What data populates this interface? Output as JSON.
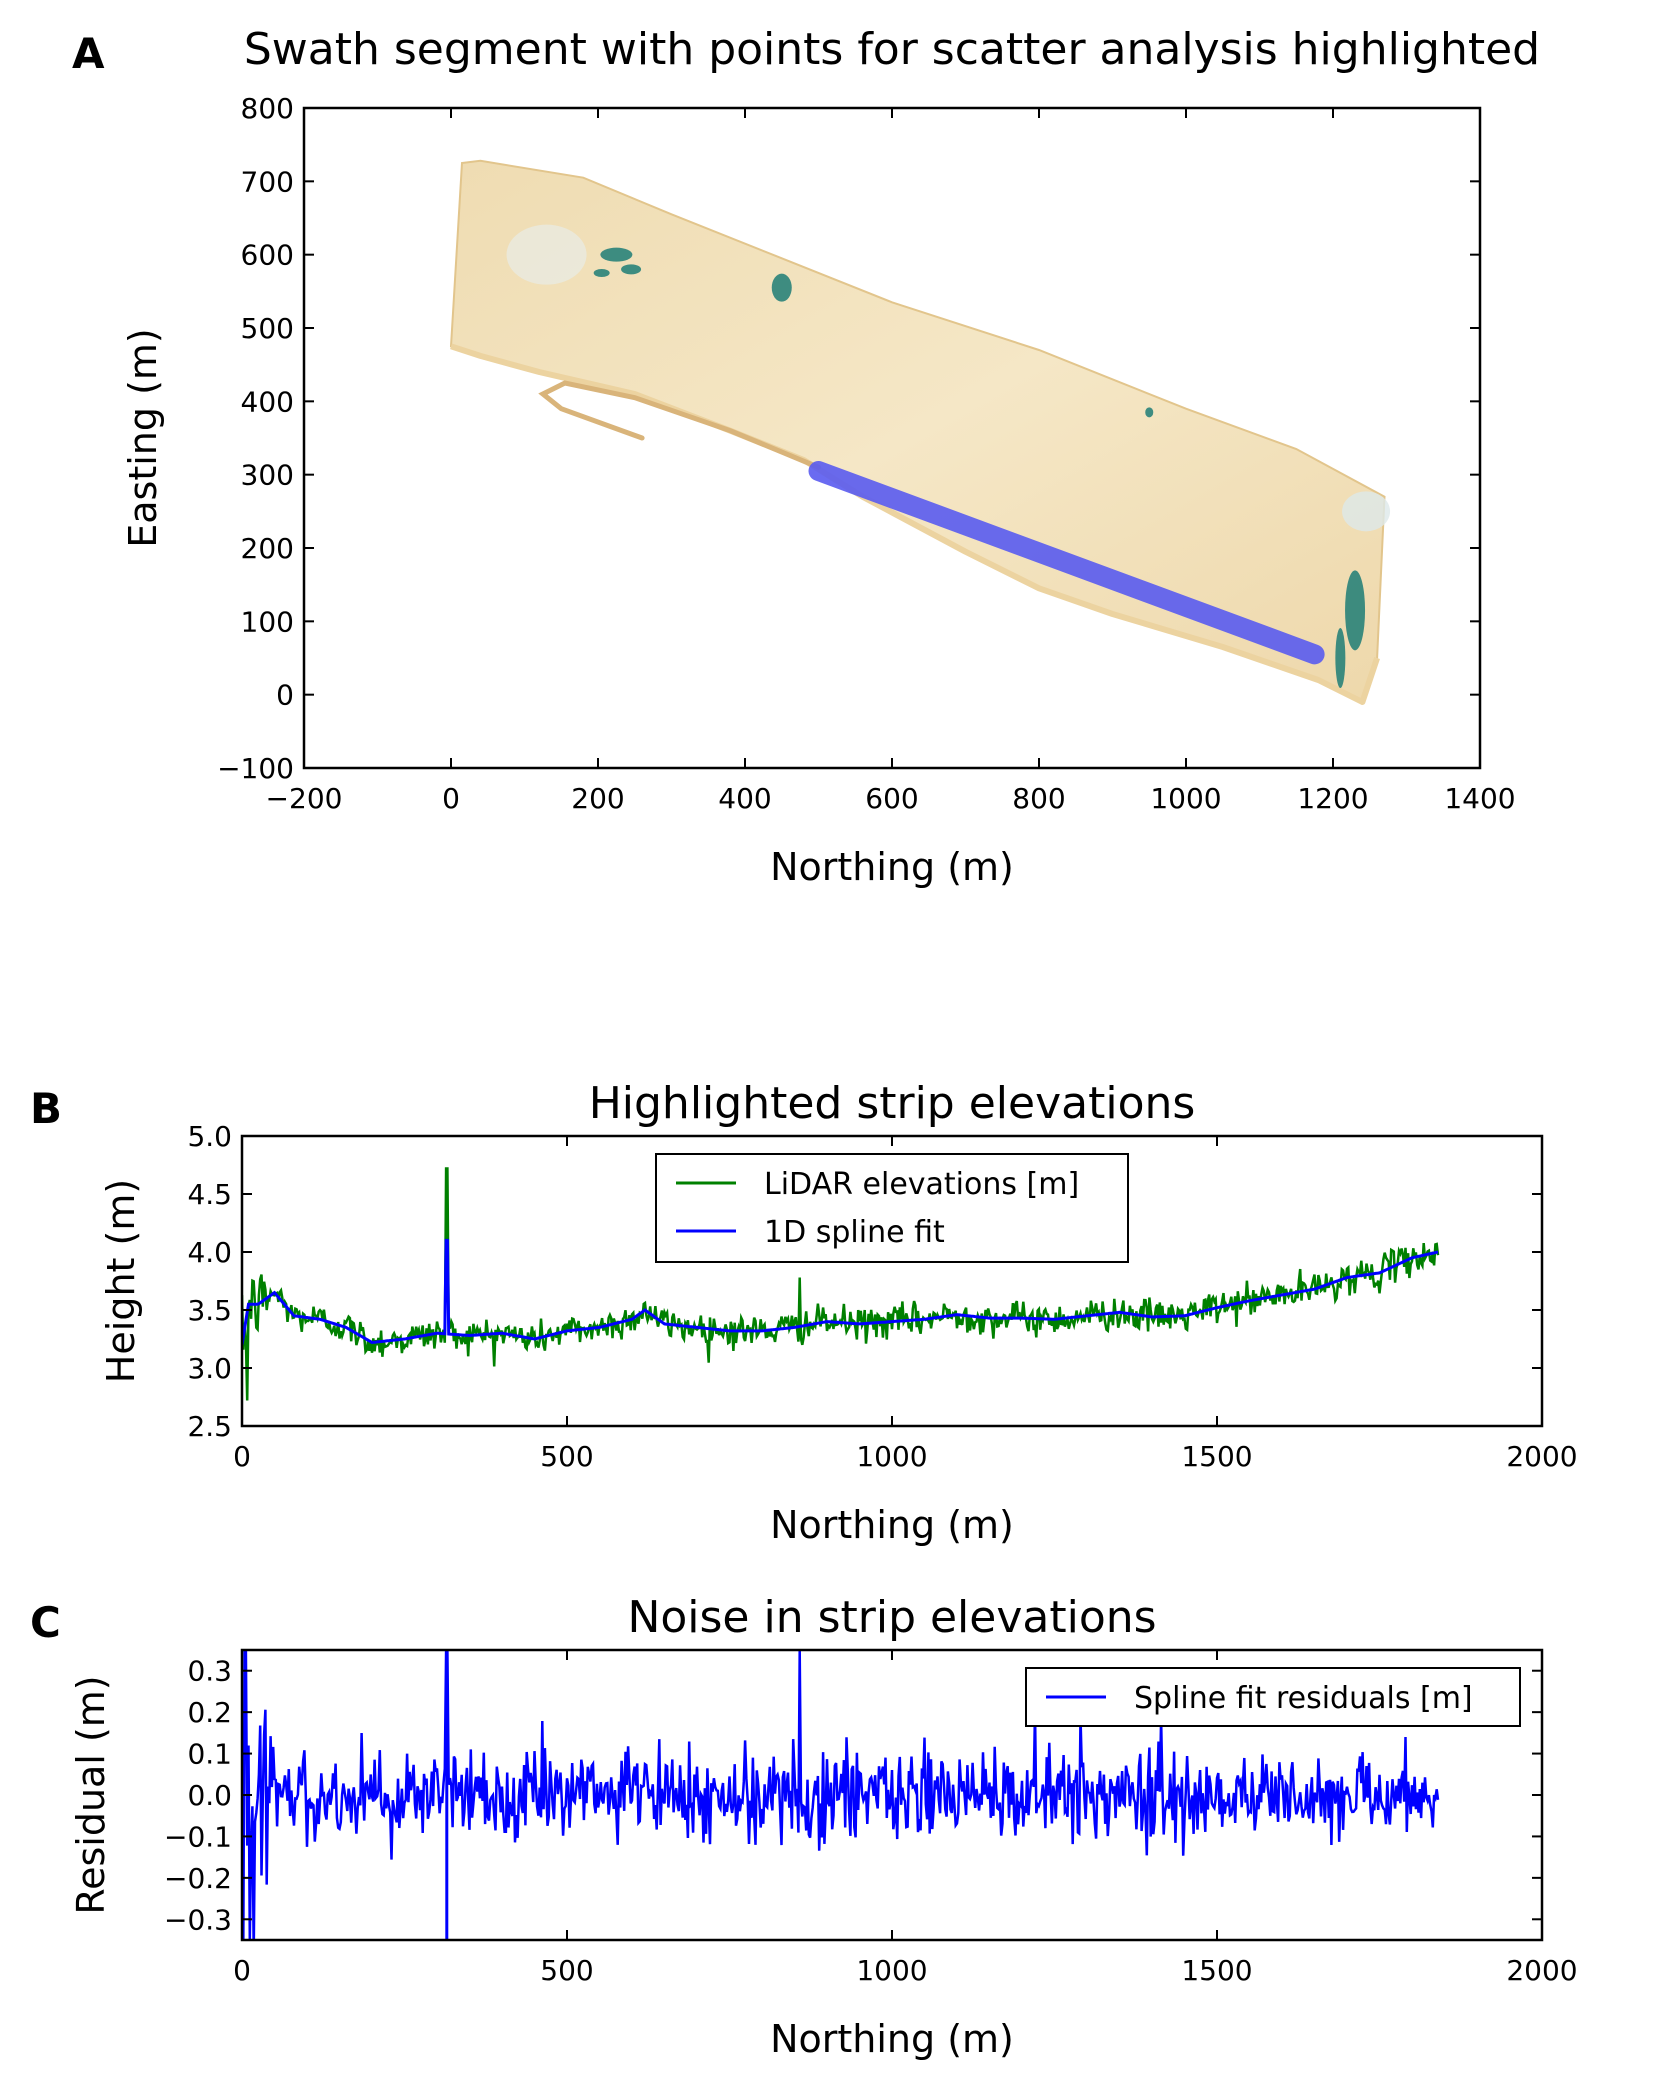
{
  "chart_data": [
    {
      "panel": "A",
      "type": "heatmap",
      "title": "Swath segment with points for scatter analysis highlighted",
      "xlabel": "Northing (m)",
      "ylabel": "Easting (m)",
      "xlim": [
        -200,
        1400
      ],
      "ylim": [
        -100,
        800
      ],
      "xticks": [
        -200,
        0,
        200,
        400,
        600,
        800,
        1000,
        1200,
        1400
      ],
      "yticks": [
        -100,
        0,
        100,
        200,
        300,
        400,
        500,
        600,
        700,
        800
      ],
      "xticklabels": [
        "−200",
        "0",
        "200",
        "400",
        "600",
        "800",
        "1000",
        "1200",
        "1400"
      ],
      "yticklabels": [
        "−100",
        "0",
        "100",
        "200",
        "300",
        "400",
        "500",
        "600",
        "700",
        "800"
      ],
      "swath_outline": [
        [
          0,
          475
        ],
        [
          15,
          725
        ],
        [
          40,
          728
        ],
        [
          180,
          705
        ],
        [
          300,
          655
        ],
        [
          450,
          595
        ],
        [
          600,
          535
        ],
        [
          800,
          470
        ],
        [
          1000,
          390
        ],
        [
          1150,
          335
        ],
        [
          1270,
          270
        ],
        [
          1260,
          50
        ],
        [
          1240,
          -10
        ],
        [
          1180,
          20
        ],
        [
          1050,
          65
        ],
        [
          900,
          110
        ],
        [
          800,
          145
        ],
        [
          700,
          195
        ],
        [
          560,
          270
        ],
        [
          480,
          320
        ],
        [
          380,
          360
        ],
        [
          250,
          410
        ],
        [
          120,
          440
        ],
        [
          40,
          462
        ]
      ],
      "highlight_strip": {
        "start": [
          500,
          305
        ],
        "end": [
          1175,
          55
        ],
        "color": "#5a5cf0"
      },
      "colors": {
        "surface_light": "#f4e6c4",
        "surface_mid": "#ecd3a0",
        "surface_edge": "#e2c58c",
        "low_teal": "#1d7d76",
        "frame": "#000000"
      }
    },
    {
      "panel": "B",
      "type": "line",
      "title": "Highlighted strip elevations",
      "xlabel": "Northing (m)",
      "ylabel": "Height (m)",
      "xlim": [
        0,
        2000
      ],
      "ylim": [
        2.5,
        5.0
      ],
      "xticks": [
        0,
        500,
        1000,
        1500,
        2000
      ],
      "yticks": [
        2.5,
        3.0,
        3.5,
        4.0,
        4.5,
        5.0
      ],
      "xticklabels": [
        "0",
        "500",
        "1000",
        "1500",
        "2000"
      ],
      "yticklabels": [
        "2.5",
        "3.0",
        "3.5",
        "4.0",
        "4.5",
        "5.0"
      ],
      "x_range": [
        0,
        1840
      ],
      "spline_fit": {
        "x": [
          0,
          10,
          25,
          50,
          80,
          120,
          160,
          200,
          250,
          300,
          350,
          400,
          450,
          500,
          550,
          600,
          620,
          650,
          700,
          750,
          800,
          850,
          900,
          950,
          1000,
          1050,
          1100,
          1150,
          1200,
          1250,
          1300,
          1350,
          1400,
          1450,
          1500,
          1550,
          1600,
          1650,
          1700,
          1750,
          1800,
          1840
        ],
        "y": [
          3.2,
          3.55,
          3.55,
          3.65,
          3.45,
          3.42,
          3.35,
          3.22,
          3.25,
          3.3,
          3.28,
          3.3,
          3.25,
          3.32,
          3.35,
          3.42,
          3.5,
          3.38,
          3.35,
          3.32,
          3.32,
          3.35,
          3.4,
          3.38,
          3.4,
          3.42,
          3.46,
          3.43,
          3.43,
          3.42,
          3.45,
          3.48,
          3.44,
          3.45,
          3.52,
          3.58,
          3.63,
          3.68,
          3.78,
          3.82,
          3.95,
          4.0
        ]
      },
      "spikes": [
        {
          "x": 315,
          "lidar_peak": 4.72,
          "spline_peak": 4.1
        },
        {
          "x": 858,
          "lidar_peak": 3.78
        },
        {
          "x": 8,
          "lidar_min": 2.72
        }
      ],
      "series": [
        {
          "name": "LiDAR elevations [m]",
          "color": "#008000",
          "noise_std": 0.07
        },
        {
          "name": "1D spline fit",
          "color": "#0000ff"
        }
      ],
      "legend_position": "upper center"
    },
    {
      "panel": "C",
      "type": "line",
      "title": "Noise in strip elevations",
      "xlabel": "Northing (m)",
      "ylabel": "Residual (m)",
      "xlim": [
        0,
        2000
      ],
      "ylim": [
        -0.35,
        0.35
      ],
      "xticks": [
        0,
        500,
        1000,
        1500,
        2000
      ],
      "yticks": [
        -0.3,
        -0.2,
        -0.1,
        0.0,
        0.1,
        0.2,
        0.3
      ],
      "xticklabels": [
        "0",
        "500",
        "1000",
        "1500",
        "2000"
      ],
      "yticklabels": [
        "−0.3",
        "−0.2",
        "−0.1",
        "0.0",
        "0.1",
        "0.2",
        "0.3"
      ],
      "x_range": [
        0,
        1840
      ],
      "residual_std": 0.055,
      "residual_peaks": [
        {
          "x": 5,
          "y": 0.35
        },
        {
          "x": 12,
          "y": -0.35
        },
        {
          "x": 315,
          "y": 0.35
        },
        {
          "x": 315,
          "y": -0.35
        },
        {
          "x": 858,
          "y": 0.35
        },
        {
          "x": 1290,
          "y": 0.19
        },
        {
          "x": 1790,
          "y": 0.14
        },
        {
          "x": 1790,
          "y": -0.13
        }
      ],
      "series": [
        {
          "name": "Spline fit residuals [m]",
          "color": "#0000ff"
        }
      ],
      "legend_position": "upper right"
    }
  ]
}
